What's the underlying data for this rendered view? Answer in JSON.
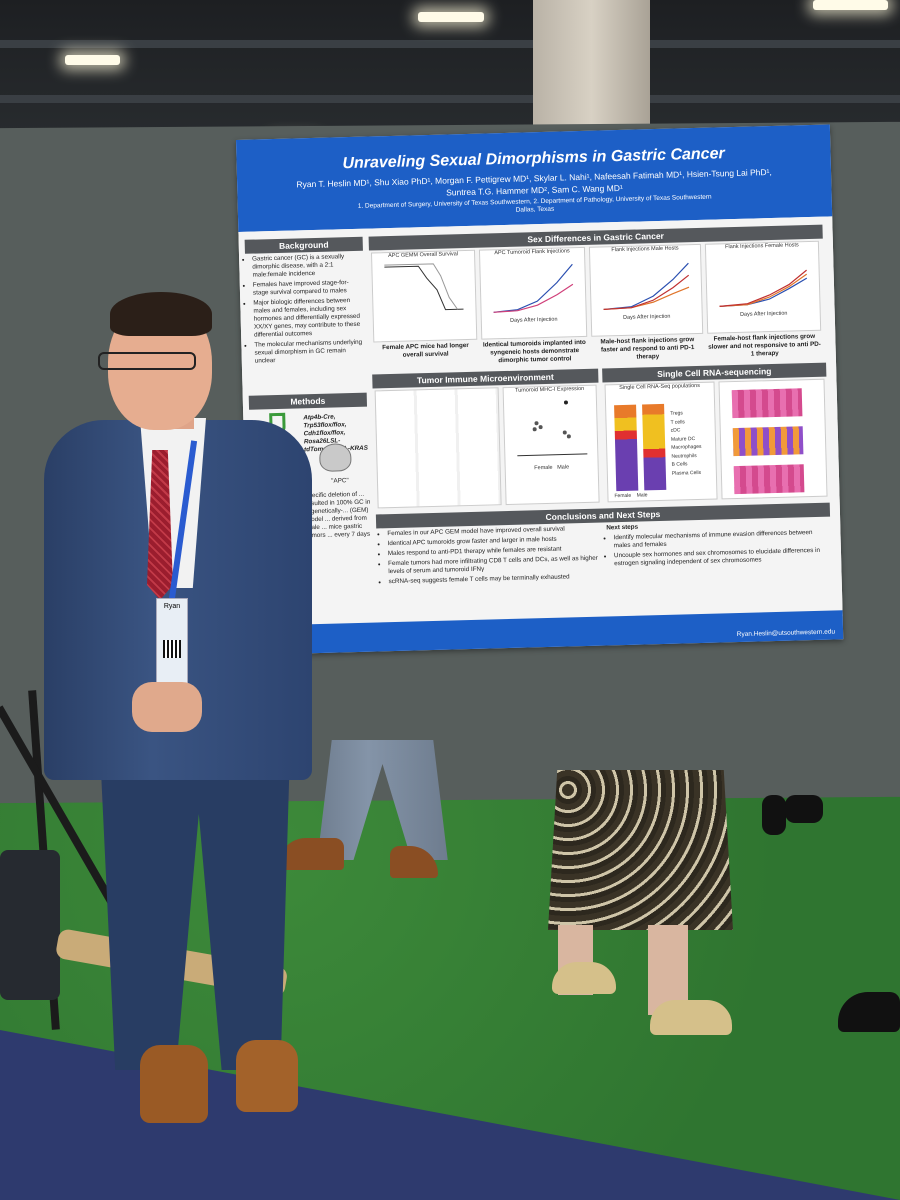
{
  "poster": {
    "title": "Unraveling Sexual Dimorphisms in Gastric Cancer",
    "authors_line1": "Ryan T. Heslin MD¹, Shu Xiao PhD¹, Morgan F. Pettigrew MD¹, Skylar L. Nahi¹, Nafeesah Fatimah MD¹, Hsien-Tsung Lai PhD¹,",
    "authors_line2": "Suntrea T.G. Hammer MD², Sam C. Wang MD¹",
    "affiliations": "1. Department of Surgery, University of Texas Southwestern, 2. Department of Pathology, University of Texas Southwestern",
    "location": "Dallas, Texas",
    "background_title": "Background",
    "background_items": [
      "Gastric cancer (GC) is a sexually dimorphic disease, with a 2:1 male:female incidence",
      "Females have improved stage-for-stage survival compared to males",
      "Major biologic differences between males and females, including sex hormones and differentially expressed XX/XY genes, may contribute to these differential outcomes",
      "The molecular mechanisms underlying sexual dimorphism in GC remain unclear"
    ],
    "methods_title": "Methods",
    "methods_genotype": "Atp4b-Cre, Trp53flox/flox, Cdh1flox/flox, Rosa26LSL-tdTomato, LSL-KRAS",
    "methods_mouse_label": "\"APC\"",
    "methods_text": "specific deletion of ... resulted in 100% GC in a genetically-... (GEM) model ... derived from male ... mice gastric tumors ... every 7 days",
    "sex_diff_title": "Sex Differences in Gastric Cancer",
    "plot1_title": "APC GEMM Overall Survival",
    "plot1_caption": "Female APC mice had longer overall survival",
    "plot2_title": "APC Tumoroid Flank Injections",
    "plot2_caption": "Identical tumoroids implanted into syngeneic hosts demonstrate dimorphic tumor control",
    "plot3_title": "Flank Injections Male Hosts",
    "plot3_caption": "Male-host flank injections grow faster and respond to anti PD-1 therapy",
    "plot4_title": "Flank Injections Female Hosts",
    "plot4_caption": "Female-host flank injections grow slower and not responsive to anti PD-1 therapy",
    "xaxis_days": "Days After Injection",
    "tme_title": "Tumor Immune Microenvironment",
    "tme_plot_title": "Tumoroid MHC-I Expression",
    "tme_xlabels": [
      "Female",
      "Male"
    ],
    "sc_title": "Single Cell RNA-sequencing",
    "sc_subtitle": "Single Cell RNA-Seq populations",
    "sc_legend": [
      "Tregs",
      "T cells",
      "cDC",
      "Mature DC",
      "Macrophages",
      "Neutrophils",
      "B Cells",
      "Plasma Cells"
    ],
    "sc_xlabels": [
      "Female",
      "Male"
    ],
    "conclusions_title": "Conclusions and Next Steps",
    "conclusions": [
      "Females in our APC GEM model have improved overall survival",
      "Identical APC tumoroids grow faster and larger in male hosts",
      "Males respond to anti-PD1 therapy while females are resistant",
      "Female tumors had more infiltrating CD8 T cells and DCs, as well as higher levels of serum and tumoroid IFNγ",
      "scRNA-seq suggests female T cells may be terminally exhausted"
    ],
    "next_steps_title": "Next steps",
    "next_steps": [
      "Identify molecular mechanisms of immune evasion differences between males and females",
      "Uncouple sex hormones and sex chromosomes to elucidate differences in estrogen signaling independent of sex chromosomes"
    ],
    "email": "Ryan.Heslin@utsouthwestern.edu"
  },
  "badge": {
    "name": "Ryan"
  },
  "colors": {
    "poster_blue": "#1d5fc6",
    "header_gray": "#55585c",
    "suit": "#2f4670",
    "tie": "#9b1d2e",
    "carpet": "#2f7530"
  }
}
